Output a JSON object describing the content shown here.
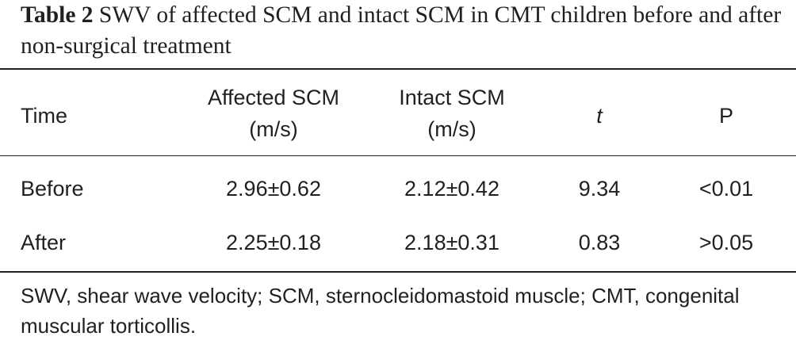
{
  "title": {
    "label": "Table 2",
    "text": "SWV of affected SCM and intact SCM in CMT children before and after non-surgical treatment"
  },
  "table": {
    "columns": [
      {
        "name": "Time"
      },
      {
        "name": "Affected SCM",
        "unit": "(m/s)"
      },
      {
        "name": "Intact SCM",
        "unit": "(m/s)"
      },
      {
        "name": "t"
      },
      {
        "name": "P"
      }
    ],
    "rows": [
      [
        "Before",
        "2.96±0.62",
        "2.12±0.42",
        "9.34",
        "<0.01"
      ],
      [
        "After",
        "2.25±0.18",
        "2.18±0.31",
        "0.83",
        ">0.05"
      ]
    ]
  },
  "footnote": "SWV, shear wave velocity; SCM, sternocleidomastoid muscle; CMT, congenital muscular torticollis."
}
